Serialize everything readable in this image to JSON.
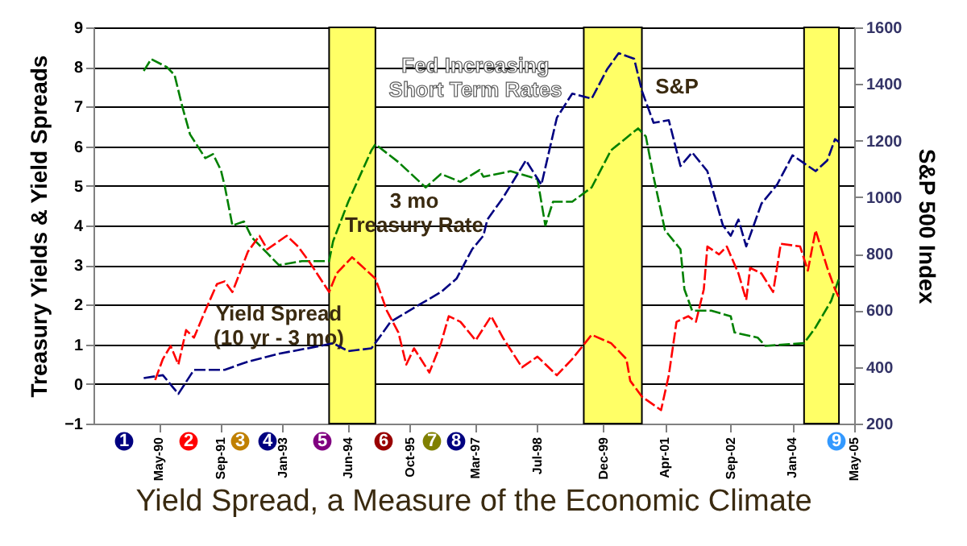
{
  "chart_data": {
    "type": "line",
    "title": "Yield Spread, a Measure of the Economic Climate",
    "ylabel": "Treasury Yields & Yield Spreads",
    "y2label": "S&P 500 Index",
    "xlim": [
      "1988-12",
      "2005-05"
    ],
    "xticks": [
      {
        "value": "1990-05",
        "label": "May-90"
      },
      {
        "value": "1991-09",
        "label": "Sep-91"
      },
      {
        "value": "1993-01",
        "label": "Jan-93"
      },
      {
        "value": "1994-06",
        "label": "Jun-94"
      },
      {
        "value": "1995-10",
        "label": "Oct-95"
      },
      {
        "value": "1997-03",
        "label": "Mar-97"
      },
      {
        "value": "1998-07",
        "label": "Jul-98"
      },
      {
        "value": "1999-12",
        "label": "Dec-99"
      },
      {
        "value": "2001-04",
        "label": "Apr-01"
      },
      {
        "value": "2002-09",
        "label": "Sep-02"
      },
      {
        "value": "2004-01",
        "label": "Jan-04"
      },
      {
        "value": "2005-05",
        "label": "May-05"
      }
    ],
    "ylim": [
      -1,
      9
    ],
    "yticks": [
      -1,
      0,
      1,
      2,
      3,
      4,
      5,
      6,
      7,
      8,
      9
    ],
    "y2lim": [
      200,
      1600
    ],
    "y2ticks": [
      200,
      400,
      600,
      800,
      1000,
      1200,
      1400,
      1600
    ],
    "grid": "y",
    "bands": [
      {
        "axis": "x",
        "from": "1994-01",
        "to": "1995-01",
        "color": "#ffff66"
      },
      {
        "axis": "x",
        "from": "1999-07",
        "to": "2000-10",
        "color": "#ffff66"
      },
      {
        "axis": "x",
        "from": "2004-04",
        "to": "2005-01",
        "color": "#ffff66"
      }
    ],
    "annotations": [
      "Fed Increasing\nShort Term Rates",
      "1",
      "2",
      "3",
      "4",
      "5",
      "6",
      "7",
      "8",
      "9"
    ],
    "series": [
      {
        "name": "3 mo\nTreasury Rate",
        "color": "#008000",
        "line_style": "dashed",
        "x": [
          "1990-01",
          "1990-03",
          "1990-07",
          "1990-09",
          "1990-11",
          "1991-01",
          "1991-05",
          "1991-07",
          "1991-09",
          "1991-10",
          "1991-12",
          "1992-03",
          "1992-05",
          "1992-09",
          "1992-12",
          "1993-06",
          "1994-01",
          "1994-02",
          "1994-06",
          "1994-12",
          "1995-01",
          "1995-07",
          "1996-02",
          "1996-06",
          "1996-11",
          "1997-04",
          "1997-05",
          "1997-12",
          "1998-07",
          "1998-09",
          "1998-11",
          "1999-04",
          "1999-09",
          "2000-02",
          "2000-09",
          "2000-11",
          "2001-01",
          "2001-04",
          "2001-08",
          "2001-09",
          "2001-11",
          "2002-04",
          "2002-09",
          "2002-10",
          "2003-04",
          "2003-06",
          "2004-04",
          "2004-07",
          "2004-11",
          "2005-01"
        ],
        "values": [
          7.9,
          8.2,
          8.0,
          7.8,
          7.0,
          6.3,
          5.7,
          5.8,
          5.4,
          5.0,
          4.0,
          4.1,
          3.7,
          3.3,
          3.0,
          3.1,
          3.1,
          3.6,
          4.6,
          5.9,
          6.05,
          5.6,
          4.96,
          5.3,
          5.1,
          5.4,
          5.23,
          5.37,
          5.17,
          4.0,
          4.6,
          4.6,
          4.96,
          5.9,
          6.45,
          6.25,
          5.23,
          3.88,
          3.4,
          2.39,
          1.85,
          1.85,
          1.71,
          1.3,
          1.17,
          0.96,
          1.03,
          1.43,
          2.1,
          2.66
        ]
      },
      {
        "name": "Yield Spread\n(10 yr - 3 mo)",
        "color": "#ff0000",
        "line_style": "dashed",
        "x": [
          "1990-04",
          "1990-06",
          "1990-08",
          "1990-10",
          "1990-12",
          "1991-02",
          "1991-05",
          "1991-08",
          "1991-10",
          "1991-12",
          "1992-04",
          "1992-07",
          "1992-09",
          "1993-02",
          "1993-05",
          "1993-08",
          "1994-01",
          "1994-03",
          "1994-07",
          "1994-10",
          "1995-01",
          "1995-04",
          "1995-07",
          "1995-09",
          "1995-11",
          "1996-03",
          "1996-06",
          "1996-08",
          "1996-11",
          "1997-03",
          "1997-07",
          "1997-10",
          "1998-03",
          "1998-07",
          "1998-12",
          "1999-04",
          "1999-09",
          "2000-02",
          "2000-06",
          "2000-07",
          "2000-10",
          "2001-03",
          "2001-05",
          "2001-07",
          "2001-10",
          "2001-12",
          "2002-02",
          "2002-03",
          "2002-06",
          "2002-08",
          "2002-11",
          "2003-01",
          "2003-02",
          "2003-05",
          "2003-08",
          "2003-10",
          "2004-03",
          "2004-05",
          "2004-07",
          "2004-10",
          "2004-12",
          "2005-01"
        ],
        "values": [
          0.1,
          0.63,
          0.96,
          0.49,
          1.36,
          1.17,
          1.85,
          2.52,
          2.59,
          2.32,
          3.34,
          3.74,
          3.4,
          3.74,
          3.47,
          3.07,
          2.32,
          2.79,
          3.2,
          2.93,
          2.66,
          1.85,
          1.3,
          0.49,
          0.9,
          0.29,
          1.03,
          1.71,
          1.57,
          1.1,
          1.71,
          1.17,
          0.42,
          0.69,
          0.22,
          0.63,
          1.24,
          1.03,
          0.63,
          0.08,
          -0.32,
          -0.66,
          0.22,
          1.57,
          1.71,
          1.57,
          2.39,
          3.47,
          3.27,
          3.47,
          2.79,
          2.12,
          2.93,
          2.79,
          2.32,
          3.54,
          3.47,
          2.86,
          3.88,
          2.93,
          2.39,
          2.18
        ]
      },
      {
        "name": "S&P",
        "color": "#000080",
        "axis": "y2",
        "line_style": "dashed",
        "x": [
          "1990-01",
          "1990-06",
          "1990-10",
          "1991-02",
          "1991-10",
          "1992-04",
          "1992-12",
          "1993-11",
          "1994-02",
          "1994-06",
          "1994-12",
          "1995-05",
          "1995-12",
          "1996-06",
          "1996-10",
          "1997-02",
          "1997-05",
          "1997-06",
          "1997-10",
          "1998-04",
          "1998-08",
          "1998-12",
          "1999-04",
          "1999-09",
          "2000-01",
          "2000-04",
          "2000-08",
          "2000-10",
          "2001-01",
          "2001-05",
          "2001-08",
          "2001-11",
          "2002-03",
          "2002-07",
          "2002-09",
          "2002-11",
          "2003-01",
          "2003-05",
          "2003-09",
          "2004-01",
          "2004-04",
          "2004-07",
          "2004-10",
          "2004-12",
          "2005-01"
        ],
        "values": [
          361,
          371,
          305,
          390,
          390,
          419,
          447,
          475,
          484,
          456,
          466,
          560,
          617,
          665,
          712,
          816,
          864,
          921,
          997,
          1130,
          1044,
          1281,
          1366,
          1348,
          1452,
          1509,
          1489,
          1376,
          1263,
          1272,
          1110,
          1158,
          1092,
          901,
          864,
          921,
          826,
          977,
          1044,
          1148,
          1120,
          1092,
          1130,
          1205,
          1195
        ]
      }
    ]
  }
}
